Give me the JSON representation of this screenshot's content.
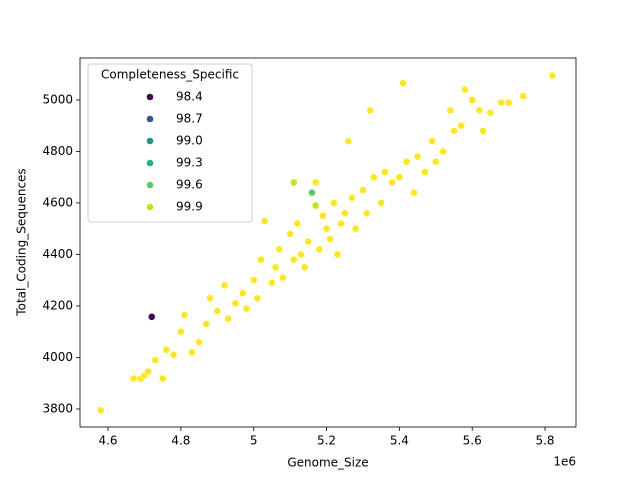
{
  "chart_data": {
    "type": "scatter",
    "x_label": "Genome_Size",
    "y_label": "Total_Coding_Sequences",
    "x_offset_text": "1e6",
    "xlim": [
      4.523,
      5.885
    ],
    "ylim": [
      3730,
      5163
    ],
    "xticks": [
      4.6,
      4.8,
      5.0,
      5.2,
      5.4,
      5.6,
      5.8
    ],
    "yticks": [
      3800,
      4000,
      4200,
      4400,
      4600,
      4800,
      5000
    ],
    "legend_title": "Completeness_Specific",
    "legend_position": "upper left",
    "series": [
      {
        "name": "98.4",
        "color": "#440154",
        "x": [
          4.72
        ],
        "y": [
          4158
        ]
      },
      {
        "name": "98.7",
        "color": "#3b528b",
        "x": [],
        "y": []
      },
      {
        "name": "99.0",
        "color": "#21918c",
        "x": [],
        "y": []
      },
      {
        "name": "99.3",
        "color": "#28ae80",
        "x": [],
        "y": []
      },
      {
        "name": "99.6",
        "color": "#5ec962",
        "x": [
          5.16
        ],
        "y": [
          4640
        ]
      },
      {
        "name": "99.9",
        "color": "#c8e020",
        "x": [
          5.11,
          5.17
        ],
        "y": [
          4680,
          4590
        ]
      },
      {
        "color": "#fde725",
        "x": [
          4.58,
          4.67,
          4.69,
          4.7,
          4.71,
          4.73,
          4.75,
          4.76,
          4.78,
          4.8,
          4.81,
          4.83,
          4.85,
          4.87,
          4.88,
          4.9,
          4.92,
          4.93,
          4.95,
          4.97,
          4.98,
          5.0,
          5.01,
          5.02,
          5.03,
          5.05,
          5.06,
          5.07,
          5.08,
          5.1,
          5.11,
          5.12,
          5.13,
          5.14,
          5.15,
          5.17,
          5.18,
          5.19,
          5.2,
          5.21,
          5.22,
          5.23,
          5.24,
          5.25,
          5.26,
          5.27,
          5.28,
          5.3,
          5.31,
          5.32,
          5.33,
          5.35,
          5.36,
          5.38,
          5.4,
          5.41,
          5.42,
          5.44,
          5.45,
          5.47,
          5.49,
          5.5,
          5.52,
          5.54,
          5.55,
          5.57,
          5.58,
          5.6,
          5.62,
          5.63,
          5.65,
          5.68,
          5.7,
          5.74,
          5.82
        ],
        "y": [
          3795,
          3918,
          3918,
          3930,
          3945,
          3990,
          3918,
          4030,
          4010,
          4100,
          4165,
          4020,
          4060,
          4130,
          4230,
          4180,
          4280,
          4150,
          4210,
          4250,
          4190,
          4300,
          4230,
          4380,
          4530,
          4290,
          4350,
          4420,
          4310,
          4480,
          4380,
          4520,
          4400,
          4350,
          4450,
          4680,
          4420,
          4550,
          4500,
          4460,
          4600,
          4400,
          4520,
          4560,
          4840,
          4620,
          4500,
          4650,
          4560,
          4960,
          4700,
          4600,
          4720,
          4680,
          4700,
          5065,
          4760,
          4640,
          4780,
          4720,
          4840,
          4760,
          4800,
          4960,
          4880,
          4900,
          5040,
          5000,
          4960,
          4880,
          4950,
          4990,
          4990,
          5015,
          5095
        ]
      }
    ]
  }
}
